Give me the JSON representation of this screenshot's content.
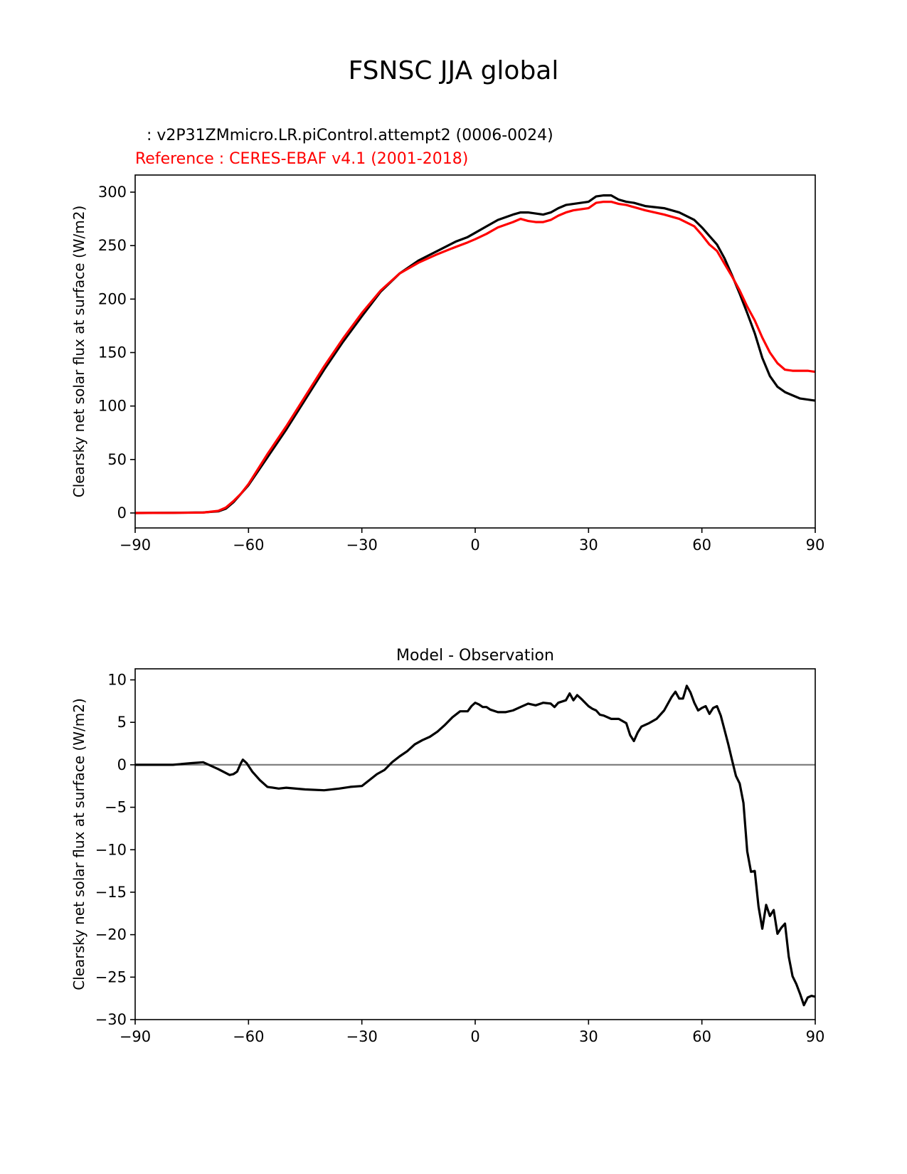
{
  "figure": {
    "suptitle": "FSNSC JJA global",
    "test_label": " : v2P31ZMmicro.LR.piControl.attempt2 (0006-0024)",
    "ref_label": "Reference : CERES-EBAF v4.1 (2001-2018)"
  },
  "colors": {
    "model": "#000000",
    "reference": "#ff0000",
    "zero_line": "#808080"
  },
  "chart_data": [
    {
      "type": "line",
      "title": "",
      "xlabel": "",
      "ylabel": "Clearsky net solar flux at surface (W/m2)",
      "xlim": [
        -90,
        90
      ],
      "ylim": [
        -14,
        316
      ],
      "xticks": [
        -90,
        -60,
        -30,
        0,
        30,
        60,
        90
      ],
      "xtick_labels": [
        "−90",
        "−60",
        "−30",
        "0",
        "30",
        "60",
        "90"
      ],
      "yticks": [
        0,
        50,
        100,
        150,
        200,
        250,
        300
      ],
      "ytick_labels": [
        "0",
        "50",
        "100",
        "150",
        "200",
        "250",
        "300"
      ],
      "series": [
        {
          "name": "v2P31ZMmicro.LR.piControl.attempt2",
          "color": "#000000",
          "x": [
            -90,
            -80,
            -72,
            -68,
            -66,
            -64,
            -62,
            -60,
            -55,
            -50,
            -45,
            -40,
            -35,
            -30,
            -25,
            -20,
            -15,
            -10,
            -5,
            -2,
            0,
            3,
            6,
            10,
            12,
            14,
            16,
            18,
            20,
            22,
            24,
            26,
            28,
            30,
            32,
            34,
            36,
            38,
            40,
            42,
            45,
            50,
            54,
            58,
            60,
            62,
            64,
            66,
            68,
            70,
            72,
            74,
            76,
            78,
            80,
            82,
            84,
            86,
            88,
            90
          ],
          "y": [
            0,
            0.2,
            0.5,
            1.5,
            4,
            10,
            18,
            26,
            52,
            78,
            106,
            134,
            160,
            184,
            207,
            224,
            236,
            245,
            254,
            258,
            262,
            268,
            274,
            279,
            281,
            281,
            280,
            279,
            281,
            285,
            288,
            289,
            290,
            291,
            296,
            297,
            297,
            293,
            291,
            290,
            287,
            285,
            281,
            274,
            267,
            259,
            251,
            238,
            222,
            205,
            187,
            168,
            145,
            128,
            118,
            113,
            110,
            107,
            106,
            105
          ]
        },
        {
          "name": "CERES-EBAF v4.1",
          "color": "#ff0000",
          "x": [
            -90,
            -80,
            -72,
            -68,
            -66,
            -64,
            -62,
            -60,
            -55,
            -50,
            -45,
            -40,
            -35,
            -30,
            -25,
            -20,
            -15,
            -10,
            -5,
            -2,
            0,
            3,
            6,
            10,
            12,
            14,
            16,
            18,
            20,
            22,
            24,
            26,
            28,
            30,
            32,
            34,
            36,
            38,
            40,
            42,
            45,
            50,
            54,
            58,
            60,
            62,
            64,
            66,
            68,
            70,
            72,
            74,
            76,
            78,
            80,
            82,
            84,
            86,
            88,
            90
          ],
          "y": [
            0,
            0.1,
            0.4,
            2,
            5,
            11,
            18,
            27,
            55,
            81,
            109,
            137,
            163,
            187,
            208,
            224,
            234,
            242,
            249,
            253,
            256,
            261,
            267,
            272,
            275,
            273,
            272,
            272,
            274,
            278,
            281,
            283,
            284,
            285,
            290,
            291,
            291,
            289,
            288,
            286,
            283,
            279,
            275,
            268,
            260,
            251,
            245,
            233,
            221,
            208,
            193,
            180,
            164,
            150,
            140,
            134,
            133,
            133,
            133,
            132
          ]
        }
      ]
    },
    {
      "type": "line",
      "title": "Model - Observation",
      "xlabel": "",
      "ylabel": "Clearsky net solar flux at surface (W/m2)",
      "xlim": [
        -90,
        90
      ],
      "ylim": [
        -30,
        11.3
      ],
      "xticks": [
        -90,
        -60,
        -30,
        0,
        30,
        60,
        90
      ],
      "xtick_labels": [
        "−90",
        "−60",
        "−30",
        "0",
        "30",
        "60",
        "90"
      ],
      "yticks": [
        10,
        5,
        0,
        -5,
        -10,
        -15,
        -20,
        -25,
        -30
      ],
      "ytick_labels": [
        "10",
        "5",
        "0",
        "−5",
        "−10",
        "−15",
        "−20",
        "−25",
        "−30"
      ],
      "reference_line": 0,
      "series": [
        {
          "name": "Model - Observation",
          "color": "#000000",
          "x": [
            -90,
            -80,
            -75,
            -72,
            -68,
            -65,
            -64,
            -63,
            -62,
            -61.5,
            -60.5,
            -59,
            -57,
            -55,
            -52,
            -50,
            -45,
            -40,
            -36,
            -33,
            -30,
            -28,
            -26,
            -24,
            -22,
            -20,
            -18,
            -16,
            -14,
            -12,
            -10,
            -8,
            -6,
            -4,
            -2,
            -1,
            0,
            1,
            2,
            3,
            4,
            6,
            8,
            10,
            12,
            14,
            16,
            18,
            20,
            21,
            22,
            24,
            25,
            26,
            27,
            28,
            30,
            31,
            32,
            33,
            34,
            36,
            38,
            40,
            41,
            42,
            43,
            44,
            46,
            48,
            50,
            52,
            53,
            54,
            55,
            56,
            57,
            58,
            59,
            60,
            61,
            62,
            63,
            64,
            65,
            66,
            67,
            68,
            69,
            70,
            71,
            72,
            73,
            74,
            75,
            76,
            77,
            78,
            79,
            80,
            81,
            82,
            83,
            84,
            85,
            86,
            87,
            88,
            89,
            90
          ],
          "y": [
            0,
            0,
            0.2,
            0.3,
            -0.5,
            -1.2,
            -1.1,
            -0.8,
            0.2,
            0.6,
            0.2,
            -0.8,
            -1.8,
            -2.6,
            -2.8,
            -2.7,
            -2.9,
            -3.0,
            -2.8,
            -2.6,
            -2.5,
            -1.8,
            -1.1,
            -0.6,
            0.3,
            1.0,
            1.6,
            2.4,
            2.9,
            3.3,
            3.9,
            4.7,
            5.6,
            6.3,
            6.3,
            6.9,
            7.3,
            7.1,
            6.8,
            6.8,
            6.5,
            6.2,
            6.2,
            6.4,
            6.8,
            7.2,
            7.0,
            7.3,
            7.2,
            6.8,
            7.3,
            7.6,
            8.4,
            7.6,
            8.2,
            7.8,
            6.9,
            6.6,
            6.4,
            5.9,
            5.8,
            5.4,
            5.4,
            4.9,
            3.5,
            2.8,
            3.8,
            4.5,
            4.9,
            5.4,
            6.4,
            8.0,
            8.6,
            7.8,
            7.8,
            9.3,
            8.5,
            7.3,
            6.4,
            6.7,
            6.9,
            6.0,
            6.7,
            6.9,
            5.8,
            4.1,
            2.4,
            0.5,
            -1.3,
            -2.2,
            -4.5,
            -10.2,
            -12.6,
            -12.5,
            -16.7,
            -19.3,
            -16.5,
            -17.8,
            -17.1,
            -19.9,
            -19.2,
            -18.7,
            -22.6,
            -24.9,
            -25.8,
            -27.0,
            -28.3,
            -27.4,
            -27.2,
            -27.3
          ]
        }
      ]
    }
  ]
}
